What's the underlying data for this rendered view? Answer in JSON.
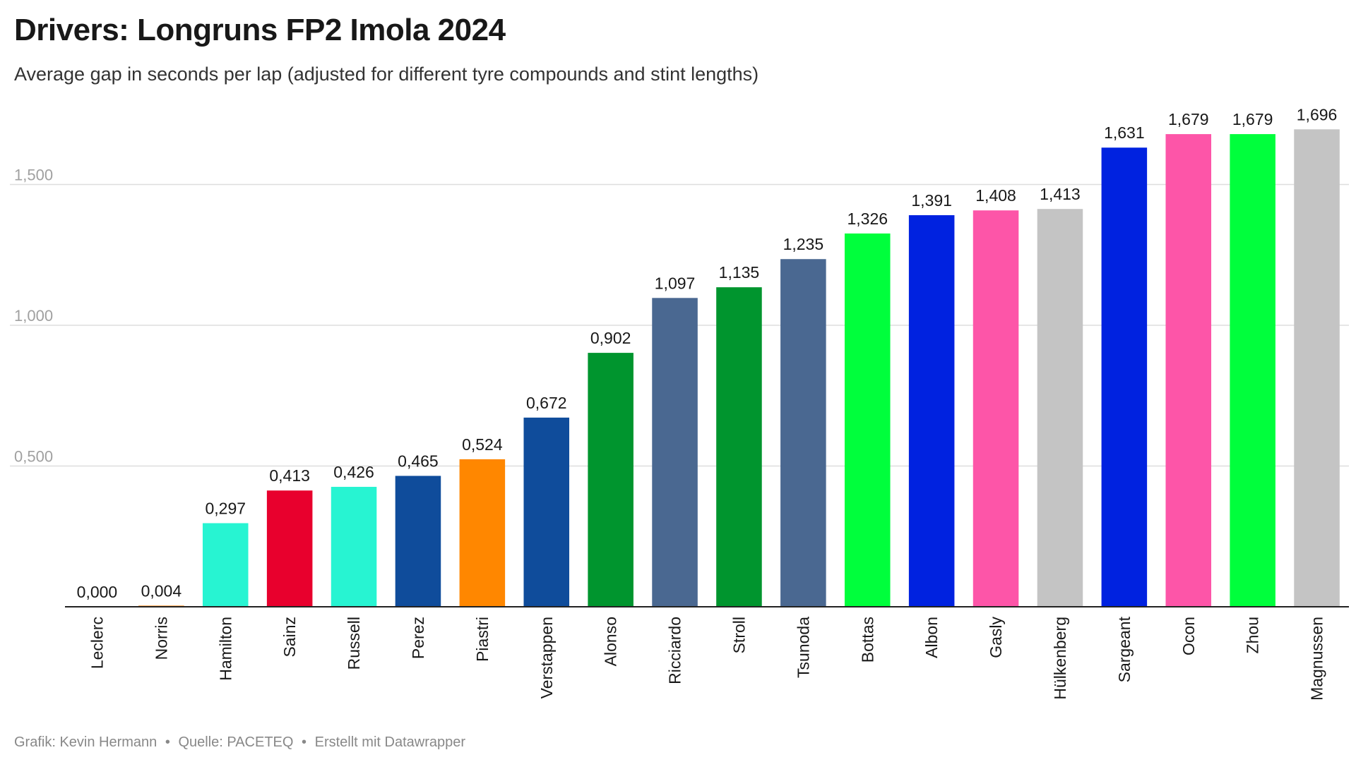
{
  "title": "Drivers: Longruns FP2 Imola 2024",
  "subtitle": "Average gap in seconds per lap (adjusted for different tyre compounds and stint lengths)",
  "footer": {
    "credit": "Grafik: Kevin Hermann",
    "source": "Quelle: PACETEQ",
    "tool": "Erstellt mit Datawrapper",
    "separator": "•"
  },
  "chart_data": {
    "type": "bar",
    "categories": [
      "Leclerc",
      "Norris",
      "Hamilton",
      "Sainz",
      "Russell",
      "Perez",
      "Piastri",
      "Verstappen",
      "Alonso",
      "Ricciardo",
      "Stroll",
      "Tsunoda",
      "Bottas",
      "Albon",
      "Gasly",
      "Hülkenberg",
      "Sargeant",
      "Ocon",
      "Zhou",
      "Magnussen"
    ],
    "values": [
      0.0,
      0.004,
      0.297,
      0.413,
      0.426,
      0.465,
      0.524,
      0.672,
      0.902,
      1.097,
      1.135,
      1.235,
      1.326,
      1.391,
      1.408,
      1.413,
      1.631,
      1.679,
      1.679,
      1.696
    ],
    "value_labels": [
      "0,000",
      "0,004",
      "0,297",
      "0,413",
      "0,426",
      "0,465",
      "0,524",
      "0,672",
      "0,902",
      "1,097",
      "1,135",
      "1,235",
      "1,326",
      "1,391",
      "1,408",
      "1,413",
      "1,631",
      "1,679",
      "1,679",
      "1,696"
    ],
    "colors": [
      "#e8002d",
      "#ff8000",
      "#27f4d2",
      "#e8002d",
      "#27f4d2",
      "#0f4c9b",
      "#ff8700",
      "#0f4c9b",
      "#00952e",
      "#4a6891",
      "#00952e",
      "#4a6891",
      "#00ff3c",
      "#0022e0",
      "#fd55a8",
      "#c4c4c4",
      "#0022e0",
      "#fd55a8",
      "#00ff3c",
      "#c4c4c4"
    ],
    "yticks": [
      0.5,
      1.0,
      1.5
    ],
    "ytick_labels": [
      "0,500",
      "1,000",
      "1,500"
    ],
    "ylim": [
      0,
      1.696
    ],
    "xlabel": "",
    "ylabel": "",
    "grid": true,
    "legend": "none"
  }
}
